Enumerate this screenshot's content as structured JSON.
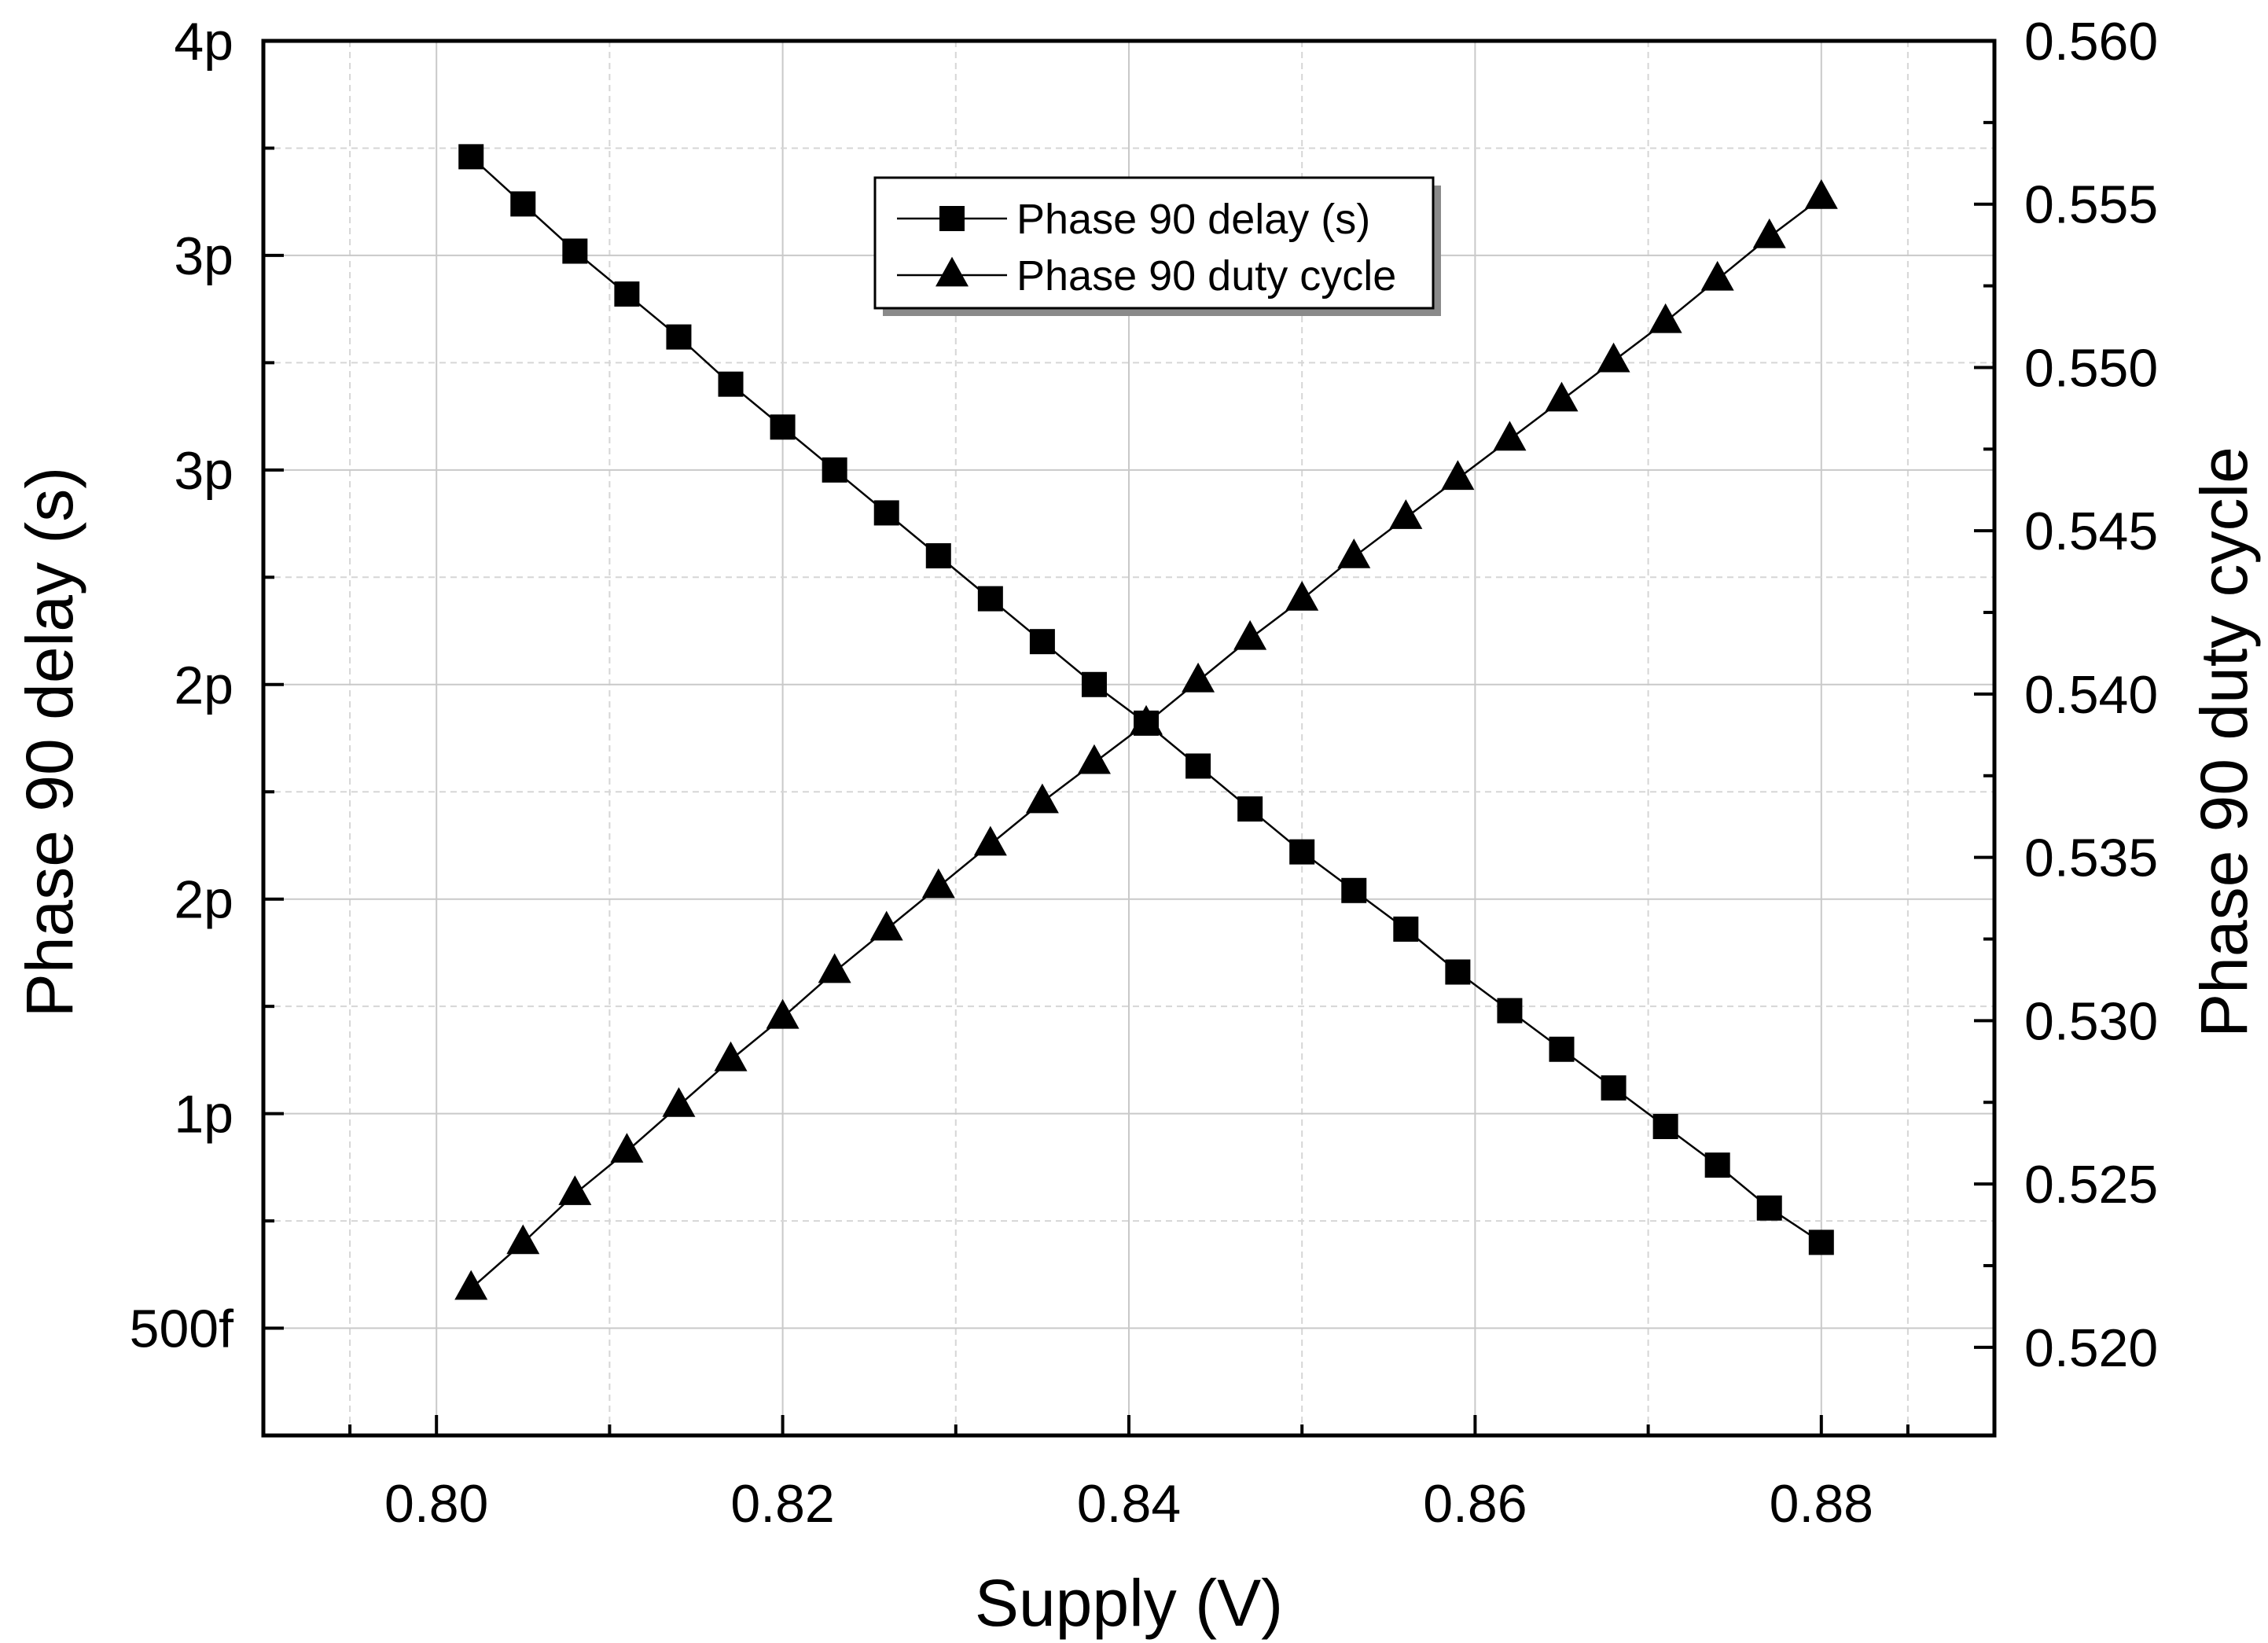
{
  "chart_data": {
    "type": "line",
    "xlabel": "Supply (V)",
    "ylabel": "Phase 90 delay (s)",
    "y2label": "Phase 90 duty cycle",
    "xlim": [
      0.79,
      0.89
    ],
    "ylim": [
      0.25,
      3.5
    ],
    "y2lim": [
      0.5173,
      0.56
    ],
    "grid": true,
    "legend_position": "top-center",
    "x_ticks": [
      0.8,
      0.82,
      0.84,
      0.86,
      0.88
    ],
    "x_tick_labels": [
      "0.80",
      "0.82",
      "0.84",
      "0.86",
      "0.88"
    ],
    "y_ticks": [
      0.5,
      1.0,
      1.5,
      2.0,
      2.5,
      3.0,
      3.5
    ],
    "y_tick_labels": [
      "500f",
      "1p",
      "2p",
      "2p",
      "3p",
      "3p",
      "4p"
    ],
    "y_tick_units": "ps",
    "y2_ticks": [
      0.52,
      0.525,
      0.53,
      0.535,
      0.54,
      0.545,
      0.55,
      0.555,
      0.56
    ],
    "y2_tick_labels": [
      "0.520",
      "0.525",
      "0.530",
      "0.535",
      "0.540",
      "0.545",
      "0.550",
      "0.555",
      "0.560"
    ],
    "x": [
      0.802,
      0.805,
      0.808,
      0.811,
      0.814,
      0.817,
      0.82,
      0.823,
      0.826,
      0.829,
      0.832,
      0.835,
      0.838,
      0.841,
      0.844,
      0.847,
      0.85,
      0.853,
      0.856,
      0.859,
      0.862,
      0.865,
      0.868,
      0.871,
      0.874,
      0.877,
      0.88
    ],
    "series": [
      {
        "name": "Phase 90 delay (s)",
        "axis": "left",
        "marker": "square",
        "values": [
          3.23,
          3.12,
          3.01,
          2.91,
          2.81,
          2.7,
          2.6,
          2.5,
          2.4,
          2.3,
          2.2,
          2.1,
          2.0,
          1.91,
          1.81,
          1.71,
          1.61,
          1.52,
          1.43,
          1.33,
          1.24,
          1.15,
          1.06,
          0.97,
          0.88,
          0.78,
          0.7
        ]
      },
      {
        "name": "Phase 90 duty cycle",
        "axis": "right",
        "marker": "triangle",
        "values": [
          0.5218,
          0.5232,
          0.5247,
          0.526,
          0.5274,
          0.5288,
          0.5301,
          0.5315,
          0.5328,
          0.5341,
          0.5354,
          0.5367,
          0.5379,
          0.5391,
          0.5404,
          0.5417,
          0.5429,
          0.5442,
          0.5454,
          0.5466,
          0.5478,
          0.549,
          0.5502,
          0.5514,
          0.5527,
          0.554,
          0.5552
        ]
      }
    ]
  }
}
